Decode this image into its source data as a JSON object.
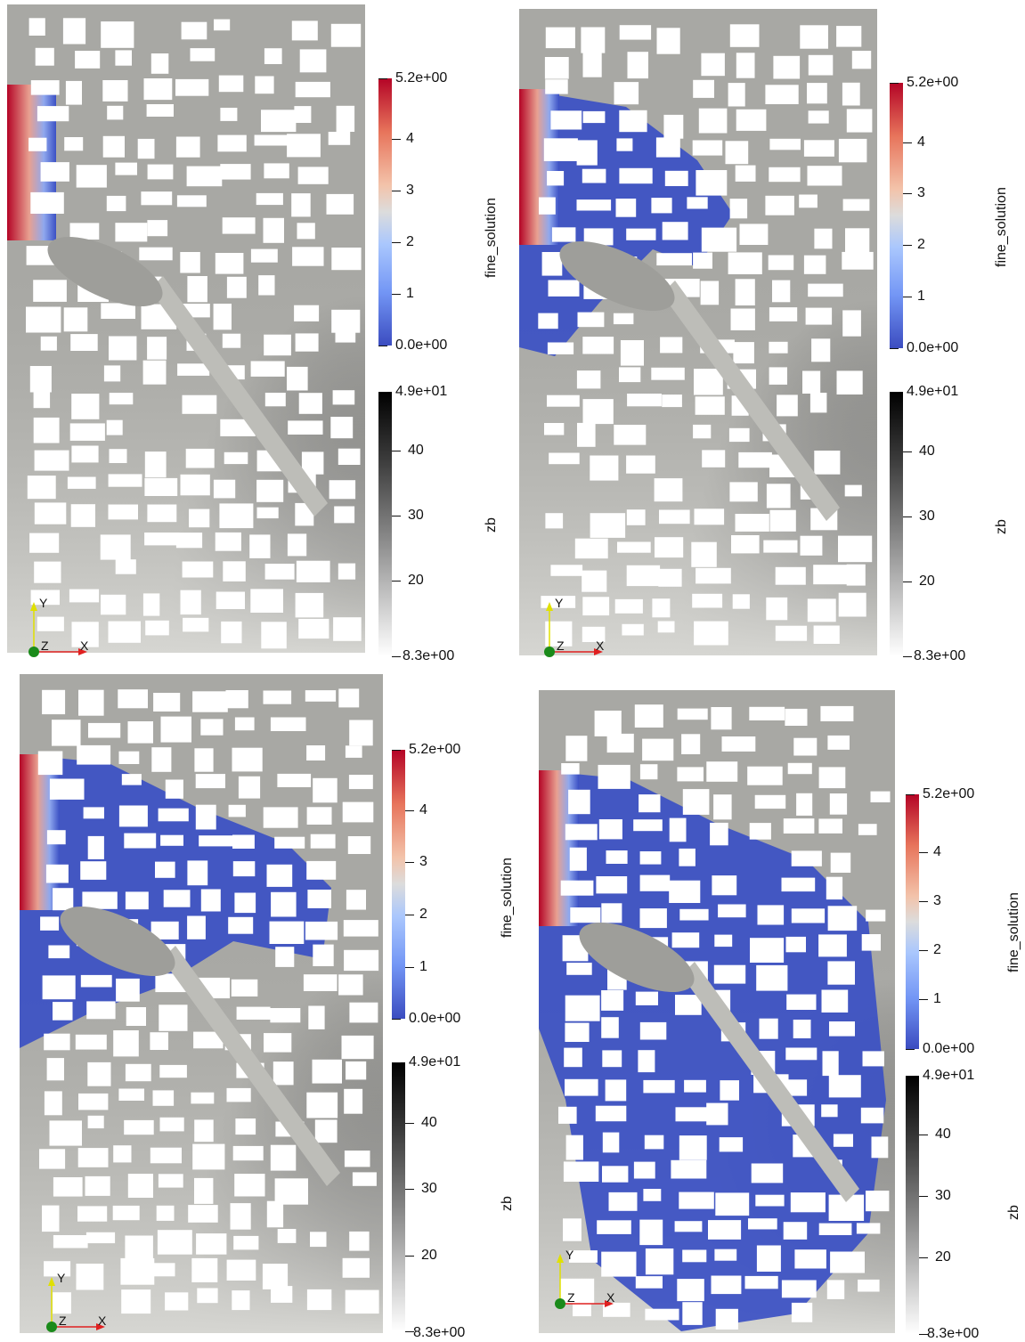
{
  "panels": [
    {
      "fine_colorbar": {
        "title": "fine_solution",
        "ticks": [
          "5.2e+00",
          "4",
          "3",
          "2",
          "1",
          "0.0e+00"
        ]
      },
      "zb_colorbar": {
        "title": "zb",
        "ticks": [
          "4.9e+01",
          "40",
          "30",
          "20",
          "8.3e+00"
        ]
      },
      "axes": {
        "x": "X",
        "y": "Y",
        "z": "Z"
      },
      "flood_extent": "minimal"
    },
    {
      "fine_colorbar": {
        "title": "fine_solution",
        "ticks": [
          "5.2e+00",
          "4",
          "3",
          "2",
          "1",
          "0.0e+00"
        ]
      },
      "zb_colorbar": {
        "title": "zb",
        "ticks": [
          "4.9e+01",
          "40",
          "30",
          "20",
          "8.3e+00"
        ]
      },
      "axes": {
        "x": "X",
        "y": "Y",
        "z": "Z"
      },
      "flood_extent": "small"
    },
    {
      "fine_colorbar": {
        "title": "fine_solution",
        "ticks": [
          "5.2e+00",
          "4",
          "3",
          "2",
          "1",
          "0.0e+00"
        ]
      },
      "zb_colorbar": {
        "title": "zb",
        "ticks": [
          "4.9e+01",
          "40",
          "30",
          "20",
          "8.3e+00"
        ]
      },
      "axes": {
        "x": "X",
        "y": "Y",
        "z": "Z"
      },
      "flood_extent": "medium"
    },
    {
      "fine_colorbar": {
        "title": "fine_solution",
        "ticks": [
          "5.2e+00",
          "4",
          "3",
          "2",
          "1",
          "0.0e+00"
        ]
      },
      "zb_colorbar": {
        "title": "zb",
        "ticks": [
          "4.9e+01",
          "40",
          "30",
          "20",
          "8.3e+00"
        ]
      },
      "axes": {
        "x": "X",
        "y": "Y",
        "z": "Z"
      },
      "flood_extent": "large"
    }
  ],
  "colors": {
    "fine_low": "#3b4cc0",
    "fine_mid": "#dddddd",
    "fine_high": "#b40426",
    "zb_low": "#ffffff",
    "zb_high": "#000000",
    "terrain": "#a8a8a4",
    "buildings": "#ffffff"
  }
}
